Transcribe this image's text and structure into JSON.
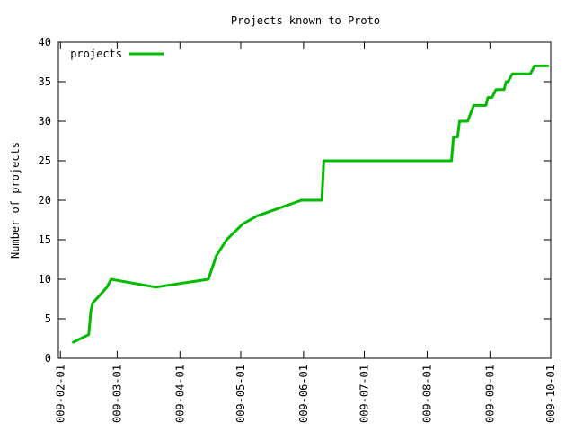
{
  "chart_data": {
    "type": "line",
    "title": "Projects known to Proto",
    "ylabel": "Number of projects",
    "xlabel": "",
    "x_type": "date",
    "xlim": [
      "2009-01-31",
      "2009-10-01"
    ],
    "ylim": [
      0,
      40
    ],
    "xticks": [
      "2009-02-01",
      "2009-03-01",
      "2009-04-01",
      "2009-05-01",
      "2009-06-01",
      "2009-07-01",
      "2009-08-01",
      "2009-09-01",
      "2009-10-01"
    ],
    "xtick_labels": [
      "009-02-01",
      "009-03-01",
      "009-04-01",
      "009-05-01",
      "009-06-01",
      "009-07-01",
      "009-08-01",
      "009-09-01",
      "009-10-01"
    ],
    "yticks": [
      0,
      5,
      10,
      15,
      20,
      25,
      30,
      35,
      40
    ],
    "grid": false,
    "legend": "top-left",
    "series": [
      {
        "name": "projects",
        "color": "#00bb00",
        "points": [
          [
            "2009-02-07",
            2
          ],
          [
            "2009-02-15",
            3
          ],
          [
            "2009-02-16",
            6
          ],
          [
            "2009-02-17",
            7
          ],
          [
            "2009-02-24",
            9
          ],
          [
            "2009-02-26",
            10
          ],
          [
            "2009-03-20",
            9
          ],
          [
            "2009-04-15",
            10
          ],
          [
            "2009-04-19",
            13
          ],
          [
            "2009-04-24",
            15
          ],
          [
            "2009-04-28",
            16
          ],
          [
            "2009-05-02",
            17
          ],
          [
            "2009-05-09",
            18
          ],
          [
            "2009-05-31",
            20
          ],
          [
            "2009-06-10",
            20
          ],
          [
            "2009-06-11",
            25
          ],
          [
            "2009-08-13",
            25
          ],
          [
            "2009-08-14",
            28
          ],
          [
            "2009-08-16",
            28
          ],
          [
            "2009-08-17",
            30
          ],
          [
            "2009-08-21",
            30
          ],
          [
            "2009-08-24",
            32
          ],
          [
            "2009-08-30",
            32
          ],
          [
            "2009-08-31",
            33
          ],
          [
            "2009-09-02",
            33
          ],
          [
            "2009-09-04",
            34
          ],
          [
            "2009-09-08",
            34
          ],
          [
            "2009-09-09",
            35
          ],
          [
            "2009-09-10",
            35
          ],
          [
            "2009-09-12",
            36
          ],
          [
            "2009-09-21",
            36
          ],
          [
            "2009-09-23",
            37
          ],
          [
            "2009-09-30",
            37
          ]
        ]
      }
    ]
  }
}
